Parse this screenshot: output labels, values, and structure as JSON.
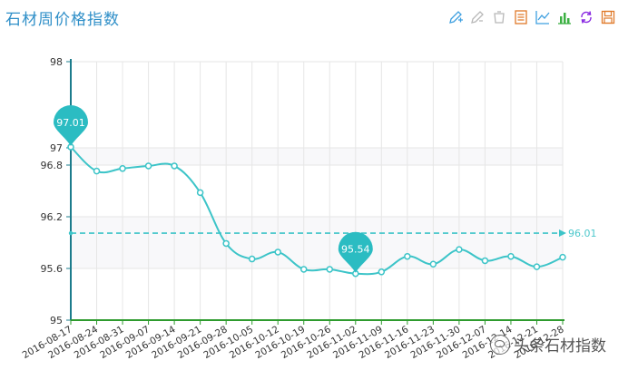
{
  "title": "石材周价格指数",
  "toolbar": [
    {
      "name": "mark-icon",
      "color": "#3fa0e0"
    },
    {
      "name": "mark-undo-icon",
      "color": "#b0b0b0"
    },
    {
      "name": "mark-clear-icon",
      "color": "#b0b0b0"
    },
    {
      "name": "data-view-icon",
      "color": "#e07a2a"
    },
    {
      "name": "line-chart-icon",
      "color": "#3fa0e0"
    },
    {
      "name": "bar-chart-icon",
      "color": "#3cb043"
    },
    {
      "name": "restore-icon",
      "color": "#8a2be2"
    },
    {
      "name": "save-image-icon",
      "color": "#e07a2a"
    }
  ],
  "watermark": "头条石材指数",
  "chart_data": {
    "type": "line",
    "title": "石材周价格指数",
    "xlabel": "",
    "ylabel": "",
    "ylim": [
      95,
      98
    ],
    "yticks": [
      "95",
      "95.6",
      "96.2",
      "96.8",
      "97",
      "98"
    ],
    "categories": [
      "2016-08-17",
      "2016-08-24",
      "2016-08-31",
      "2016-09-07",
      "2016-09-14",
      "2016-09-21",
      "2016-09-28",
      "2016-10-05",
      "2016-10-12",
      "2016-10-19",
      "2016-10-26",
      "2016-11-02",
      "2016-11-09",
      "2016-11-16",
      "2016-11-23",
      "2016-11-30",
      "2016-12-07",
      "2016-12-14",
      "2016-12-21",
      "2016-12-28"
    ],
    "series": [
      {
        "values": [
          97.01,
          96.73,
          96.76,
          96.79,
          96.79,
          96.48,
          95.89,
          95.71,
          95.79,
          95.59,
          95.59,
          95.54,
          95.56,
          95.74,
          95.65,
          95.82,
          95.69,
          95.74,
          95.62,
          95.73
        ]
      }
    ],
    "markers": [
      {
        "type": "max",
        "label": "97.01",
        "index": 0
      },
      {
        "type": "min",
        "label": "95.54",
        "index": 11
      }
    ],
    "average": {
      "value": 96.01,
      "label": "96.01"
    },
    "colors": {
      "line": "#3cc4c8",
      "marker": "#2bbcc2",
      "axis_left": "#1c7c8c",
      "axis_bottom": "#2e9b2e",
      "grid": "#e6e6e6"
    },
    "grid": true
  }
}
